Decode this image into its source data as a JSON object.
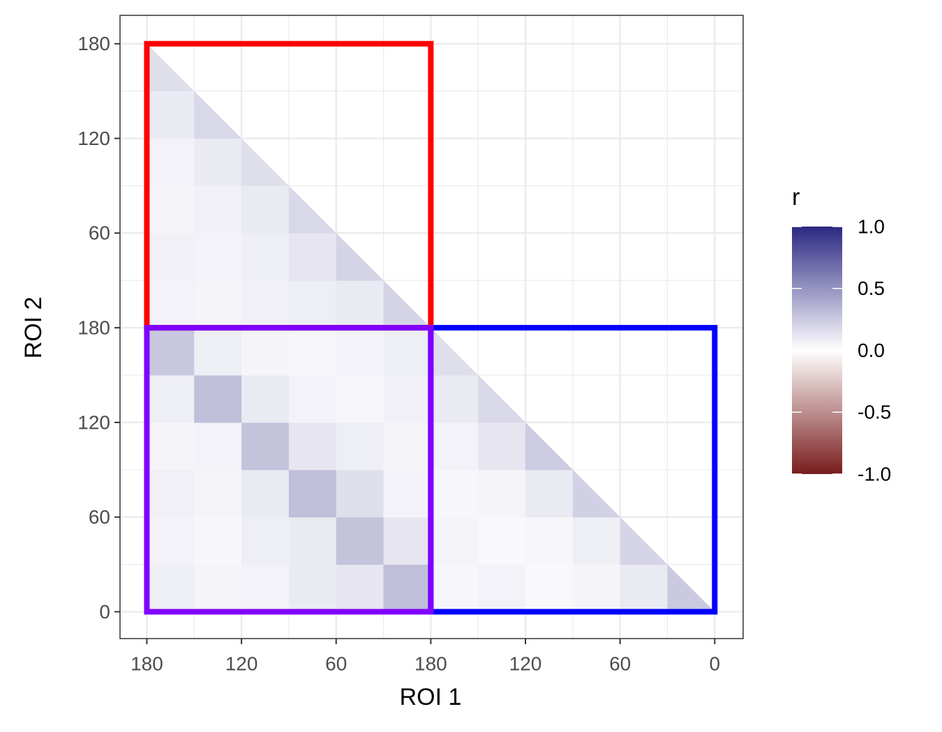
{
  "chart_data": {
    "type": "heatmap",
    "xlabel": "ROI 1",
    "ylabel": "ROI 2",
    "xlim": [
      377,
      -18
    ],
    "ylim": [
      -17,
      378
    ],
    "xticks": [
      {
        "value": 360,
        "label": "180"
      },
      {
        "value": 300,
        "label": "120"
      },
      {
        "value": 240,
        "label": "60"
      },
      180,
      120,
      60,
      0
    ],
    "yticks": [
      0,
      60,
      120,
      180,
      {
        "value": 240,
        "label": "60"
      },
      {
        "value": 300,
        "label": "120"
      },
      {
        "value": 360,
        "label": "180"
      }
    ],
    "grid": true,
    "z": [
      [
        0.08,
        0.05,
        0.06,
        0.1,
        0.12,
        0.3,
        0.04,
        0.06,
        0.03,
        0.05,
        0.1,
        0.25
      ],
      [
        0.06,
        0.04,
        0.08,
        0.1,
        0.28,
        0.12,
        0.05,
        0.03,
        0.04,
        0.08,
        0.2
      ],
      [
        0.07,
        0.05,
        0.1,
        0.3,
        0.15,
        0.06,
        0.04,
        0.05,
        0.1,
        0.22
      ],
      [
        0.05,
        0.06,
        0.28,
        0.12,
        0.08,
        0.05,
        0.06,
        0.12,
        0.24
      ],
      [
        0.08,
        0.3,
        0.1,
        0.06,
        0.04,
        0.07,
        0.1,
        0.18
      ],
      [
        0.26,
        0.08,
        0.05,
        0.04,
        0.06,
        0.08,
        0.15
      ],
      [
        0.06,
        0.05,
        0.07,
        0.08,
        0.1,
        0.2
      ],
      [
        0.07,
        0.06,
        0.08,
        0.12,
        0.2
      ],
      [
        0.05,
        0.07,
        0.1,
        0.18
      ],
      [
        0.06,
        0.1,
        0.15
      ],
      [
        0.1,
        0.18
      ],
      [
        0.15
      ]
    ],
    "colors": {
      "low": "#781c1c",
      "mid": "#ffffff",
      "high": "#2c2882"
    },
    "legend_title": "r",
    "colorbar_lim": [
      -1,
      1
    ],
    "colorbar_ticks": [
      {
        "value": 1,
        "label": "1.0"
      },
      {
        "value": 0.5,
        "label": "0.5"
      },
      {
        "value": 0,
        "label": "0.0"
      },
      -0.5,
      {
        "value": -1,
        "label": "-1.0"
      }
    ],
    "boxes": [
      {
        "color": "#ff0000",
        "x": [
          360,
          180
        ],
        "y": [
          180,
          360
        ]
      },
      {
        "color": "#0000ff",
        "x": [
          180,
          0
        ],
        "y": [
          0,
          180
        ]
      },
      {
        "color": "#8000ff",
        "x": [
          360,
          180
        ],
        "y": [
          0,
          180
        ]
      }
    ]
  }
}
